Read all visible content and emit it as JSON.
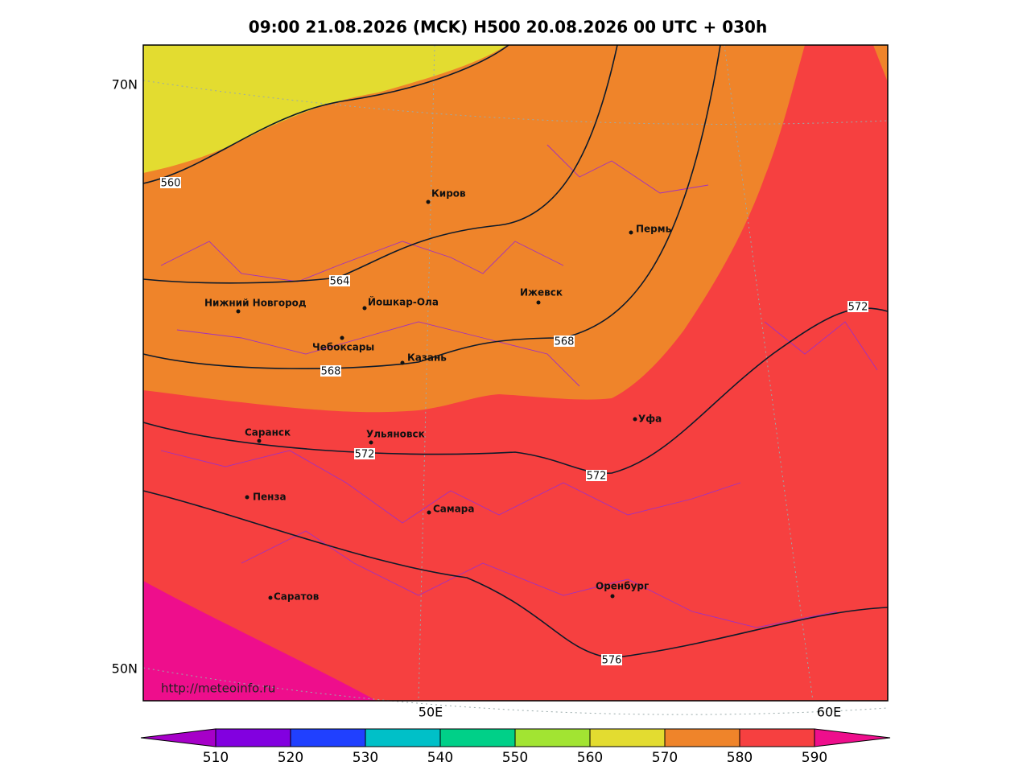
{
  "title": "09:00 21.08.2026 (MCK) H500  20.08.2026 00 UTC + 030h",
  "lat_labels": [
    "70N",
    "50N"
  ],
  "lon_labels": [
    "50E",
    "60E"
  ],
  "cities": [
    "Киров",
    "Пермь",
    "Нижний Новгород",
    "Йошкар-Ола",
    "Ижевск",
    "Чебоксары",
    "Казань",
    "Саранск",
    "Ульяновск",
    "Уфа",
    "Пенза",
    "Самара",
    "Оренбург",
    "Саратов"
  ],
  "contour_labels": [
    560,
    564,
    568,
    568,
    572,
    572,
    572,
    576
  ],
  "colorbar": {
    "ticks": [
      510,
      520,
      530,
      540,
      550,
      560,
      570,
      580,
      590
    ],
    "colors": [
      "#a600c8",
      "#8200e0",
      "#2040ff",
      "#00c0c8",
      "#00d088",
      "#a2e432",
      "#e3dc30",
      "#ef842a",
      "#f64040",
      "#ee0e8c"
    ]
  },
  "credit": "http://meteoinfo.ru"
}
